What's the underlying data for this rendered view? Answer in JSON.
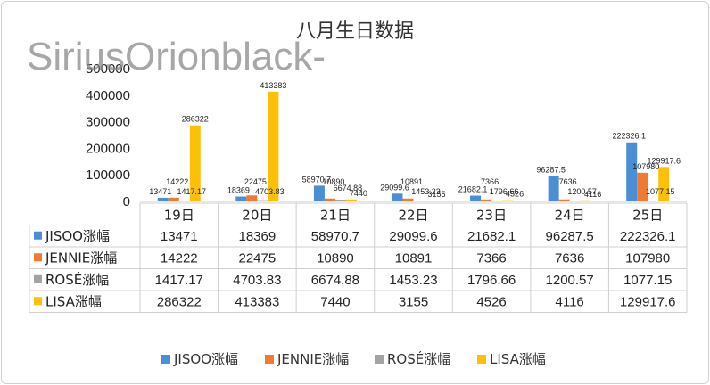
{
  "watermark": "SiriusOrionblack-",
  "chart_data": {
    "type": "bar",
    "title": "八月生日数据",
    "categories": [
      "19日",
      "20日",
      "21日",
      "22日",
      "23日",
      "24日",
      "25日"
    ],
    "ylim": [
      0,
      500000
    ],
    "yticks": [
      "0",
      "100000",
      "200000",
      "300000",
      "400000",
      "500000"
    ],
    "grid": false,
    "legend": "bottom",
    "series": [
      {
        "name": "JISOO涨幅",
        "color": "#4a8fd6",
        "values": [
          13471,
          18369,
          58970.7,
          29099.6,
          21682.1,
          96287.5,
          222326.1
        ],
        "labels": [
          "13471",
          "18369",
          "58970.7",
          "29099.6",
          "21682.1",
          "96287.5",
          "222326.1"
        ]
      },
      {
        "name": "JENNIE涨幅",
        "color": "#ee7b33",
        "values": [
          14222,
          22475,
          10890,
          10891,
          7366,
          7636,
          107980
        ],
        "labels": [
          "14222",
          "22475",
          "10890",
          "10891",
          "7366",
          "7636",
          "107980"
        ]
      },
      {
        "name": "ROSÉ涨幅",
        "color": "#a3a3a3",
        "values": [
          1417.17,
          4703.83,
          6674.88,
          1453.23,
          1796.66,
          1200.57,
          1077.15
        ],
        "labels": [
          "1417.17",
          "4703.83",
          "6674.88",
          "1453.23",
          "1796.66",
          "1200.57",
          "1077.15"
        ]
      },
      {
        "name": "LISA涨幅",
        "color": "#fcc007",
        "values": [
          286322,
          413383,
          7440,
          3155,
          4526,
          4116,
          129917.6
        ],
        "labels": [
          "286322",
          "413383",
          "7440",
          "3155",
          "4526",
          "4116",
          "129917.6"
        ]
      }
    ]
  }
}
